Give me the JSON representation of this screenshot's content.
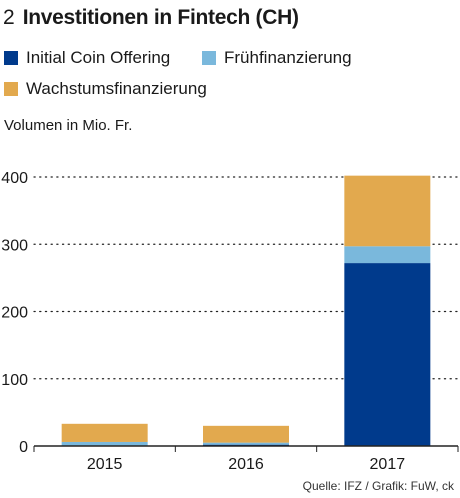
{
  "figure": {
    "number": "2",
    "title": "Investitionen in Fintech (CH)",
    "source": "Quelle: IFZ / Grafik: FuW, ck"
  },
  "legend": [
    {
      "label": "Initial Coin Offering",
      "color": "#003a8c"
    },
    {
      "label": "Frühfinanzierung",
      "color": "#7ab8dc"
    },
    {
      "label": "Wachstumsfinanzierung",
      "color": "#e2a94e"
    }
  ],
  "chart_data": {
    "type": "bar",
    "stacked": true,
    "ylabel": "Volumen in Mio. Fr.",
    "categories": [
      "2015",
      "2016",
      "2017"
    ],
    "series": [
      {
        "name": "Initial Coin Offering",
        "color": "#003a8c",
        "values": [
          0,
          2,
          272
        ]
      },
      {
        "name": "Frühfinanzierung",
        "color": "#7ab8dc",
        "values": [
          6,
          3,
          25
        ]
      },
      {
        "name": "Wachstumsfinanzierung",
        "color": "#e2a94e",
        "values": [
          27,
          25,
          105
        ]
      }
    ],
    "ylim": [
      0,
      400
    ],
    "yticks": [
      0,
      100,
      200,
      300,
      400
    ],
    "grid": "dotted horizontal"
  }
}
